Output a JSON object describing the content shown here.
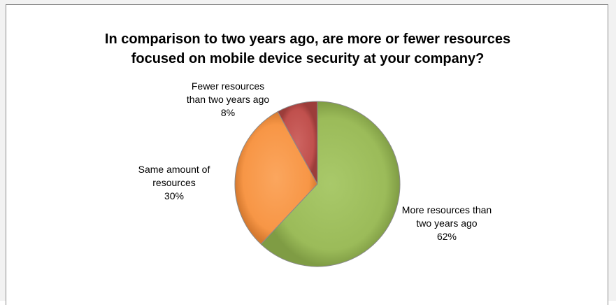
{
  "chart_data": {
    "type": "pie",
    "title_lines": [
      "In comparison to two years ago, are more or fewer resources",
      "focused on mobile device security at your company?"
    ],
    "slices": [
      {
        "name_lines": [
          "More resources than",
          "two years ago"
        ],
        "value_label": "62%",
        "value": 62,
        "color": "#9bbb59"
      },
      {
        "name_lines": [
          "Same amount of",
          "resources"
        ],
        "value_label": "30%",
        "value": 30,
        "color": "#f79646"
      },
      {
        "name_lines": [
          "Fewer resources",
          "than two years ago"
        ],
        "value_label": "8%",
        "value": 8,
        "color": "#c0504d"
      }
    ],
    "legend": "none",
    "data_labels": "outside"
  }
}
